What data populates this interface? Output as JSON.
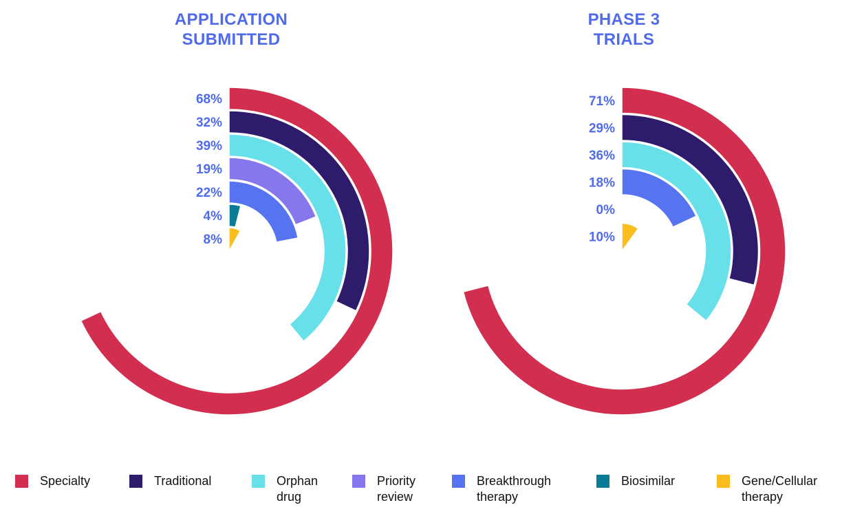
{
  "chart_data": [
    {
      "type": "radial-bar",
      "title": "APPLICATION SUBMITTED",
      "title_lines": [
        "APPLICATION",
        "SUBMITTED"
      ],
      "unit": "%",
      "full_circle_value": 100,
      "categories": [
        "Specialty",
        "Traditional",
        "Orphan drug",
        "Priority review",
        "Breakthrough therapy",
        "Biosimilar",
        "Gene/Cellular therapy"
      ],
      "values": [
        68,
        32,
        39,
        19,
        22,
        4,
        8
      ],
      "labels": [
        "68%",
        "32%",
        "39%",
        "19%",
        "22%",
        "4%",
        "8%"
      ]
    },
    {
      "type": "radial-bar",
      "title": "PHASE 3 TRIALS",
      "title_lines": [
        "PHASE 3",
        "TRIALS"
      ],
      "unit": "%",
      "full_circle_value": 100,
      "categories": [
        "Specialty",
        "Traditional",
        "Orphan drug",
        "Breakthrough therapy",
        "Biosimilar",
        "Gene/Cellular therapy"
      ],
      "values": [
        71,
        29,
        36,
        18,
        0,
        10
      ],
      "labels": [
        "71%",
        "29%",
        "36%",
        "18%",
        "0%",
        "10%"
      ]
    }
  ],
  "legend": {
    "placement": "bottom",
    "items": [
      {
        "label": "Specialty",
        "color": "#d12e50"
      },
      {
        "label": "Traditional",
        "color": "#2e1b6b"
      },
      {
        "label": "Orphan\ndrug",
        "color": "#67e0ea"
      },
      {
        "label": "Priority\nreview",
        "color": "#8677ec"
      },
      {
        "label": "Breakthrough\ntherapy",
        "color": "#5674ef"
      },
      {
        "label": "Biosimilar",
        "color": "#0a7b94"
      },
      {
        "label": "Gene/Cellular\ntherapy",
        "color": "#fbbc1e"
      }
    ]
  },
  "colors": {
    "title": "#4f6bea",
    "label": "#4f6bea",
    "Specialty": "#d12e50",
    "Traditional": "#2e1b6b",
    "Orphan drug": "#67e0ea",
    "Priority review": "#8677ec",
    "Breakthrough therapy": "#5674ef",
    "Biosimilar": "#0a7b94",
    "Gene/Cellular therapy": "#fbbc1e"
  }
}
